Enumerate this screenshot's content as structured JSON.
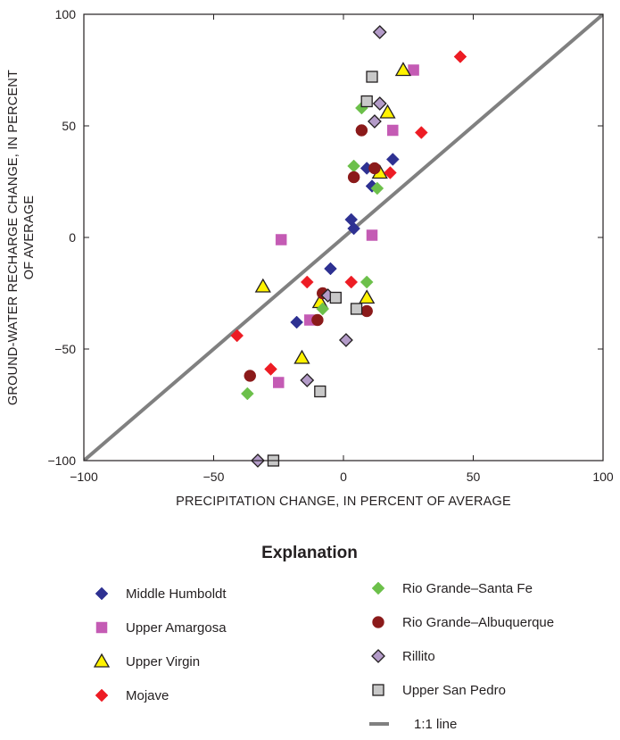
{
  "chart_data": {
    "type": "scatter",
    "xlabel": "PRECIPITATION CHANGE, IN PERCENT OF AVERAGE",
    "ylabel_lines": [
      "GROUND-WATER RECHARGE CHANGE, IN PERCENT",
      "OF AVERAGE"
    ],
    "xlim": [
      -100,
      100
    ],
    "ylim": [
      -100,
      100
    ],
    "x_ticks": [
      {
        "value": -100,
        "label": "−100"
      },
      {
        "value": -50,
        "label": "−50"
      },
      {
        "value": 0,
        "label": "0"
      },
      {
        "value": 50,
        "label": "50"
      },
      {
        "value": 100,
        "label": "100"
      }
    ],
    "y_ticks": [
      {
        "value": -100,
        "label": "−100"
      },
      {
        "value": -50,
        "label": "−50"
      },
      {
        "value": 0,
        "label": "0"
      },
      {
        "value": 50,
        "label": "50"
      },
      {
        "value": 100,
        "label": "100"
      }
    ],
    "grid": false,
    "legend_title": "Explanation",
    "legend_placement": "bottom",
    "reference_line": {
      "name": "1:1 line",
      "from": [
        -100,
        -100
      ],
      "to": [
        100,
        100
      ],
      "color": "#808080"
    },
    "series": [
      {
        "name": "Middle Humboldt",
        "marker": "diamond",
        "color": "#2e3192",
        "stroke": "#2e3192",
        "points": [
          [
            9,
            31
          ],
          [
            11,
            23
          ],
          [
            19,
            35
          ],
          [
            3,
            8
          ],
          [
            4,
            4
          ],
          [
            -5,
            -14
          ],
          [
            -18,
            -38
          ]
        ]
      },
      {
        "name": "Upper Amargosa",
        "marker": "square",
        "color": "#c45bb4",
        "stroke": "#c45bb4",
        "points": [
          [
            27,
            75
          ],
          [
            19,
            48
          ],
          [
            11,
            1
          ],
          [
            -24,
            -1
          ],
          [
            -13,
            -37
          ],
          [
            -25,
            -65
          ]
        ]
      },
      {
        "name": "Upper Virgin",
        "marker": "triangle",
        "color": "#fff200",
        "stroke": "#231f20",
        "points": [
          [
            23,
            75
          ],
          [
            17,
            56
          ],
          [
            14,
            29
          ],
          [
            -31,
            -22
          ],
          [
            -9,
            -29
          ],
          [
            9,
            -27
          ],
          [
            -16,
            -54
          ]
        ]
      },
      {
        "name": "Mojave",
        "marker": "diamond",
        "color": "#ed1c24",
        "stroke": "#ed1c24",
        "points": [
          [
            45,
            81
          ],
          [
            30,
            47
          ],
          [
            18,
            29
          ],
          [
            -14,
            -20
          ],
          [
            3,
            -20
          ],
          [
            -41,
            -44
          ],
          [
            -28,
            -59
          ]
        ]
      },
      {
        "name": "Rio Grande–Santa Fe",
        "marker": "diamond",
        "color": "#6cc04a",
        "stroke": "#6cc04a",
        "points": [
          [
            7,
            58
          ],
          [
            4,
            32
          ],
          [
            13,
            22
          ],
          [
            9,
            -20
          ],
          [
            -8,
            -32
          ],
          [
            -37,
            -70
          ]
        ]
      },
      {
        "name": "Rio Grande–Albuquerque",
        "marker": "circle",
        "color": "#8b1a1a",
        "stroke": "#8b1a1a",
        "points": [
          [
            7,
            48
          ],
          [
            12,
            31
          ],
          [
            4,
            27
          ],
          [
            -8,
            -25
          ],
          [
            -10,
            -37
          ],
          [
            9,
            -33
          ],
          [
            -36,
            -62
          ]
        ]
      },
      {
        "name": "Rillito",
        "marker": "diamond",
        "color": "#b39bc8",
        "stroke": "#231f20",
        "points": [
          [
            14,
            92
          ],
          [
            14,
            60
          ],
          [
            12,
            52
          ],
          [
            -6,
            -26
          ],
          [
            1,
            -46
          ],
          [
            -14,
            -64
          ],
          [
            -33,
            -100
          ]
        ]
      },
      {
        "name": "Upper San Pedro",
        "marker": "square",
        "color": "#c8c8c8",
        "stroke": "#231f20",
        "points": [
          [
            11,
            72
          ],
          [
            9,
            61
          ],
          [
            -3,
            -27
          ],
          [
            5,
            -32
          ],
          [
            -9,
            -69
          ],
          [
            -27,
            -100
          ]
        ]
      }
    ]
  }
}
